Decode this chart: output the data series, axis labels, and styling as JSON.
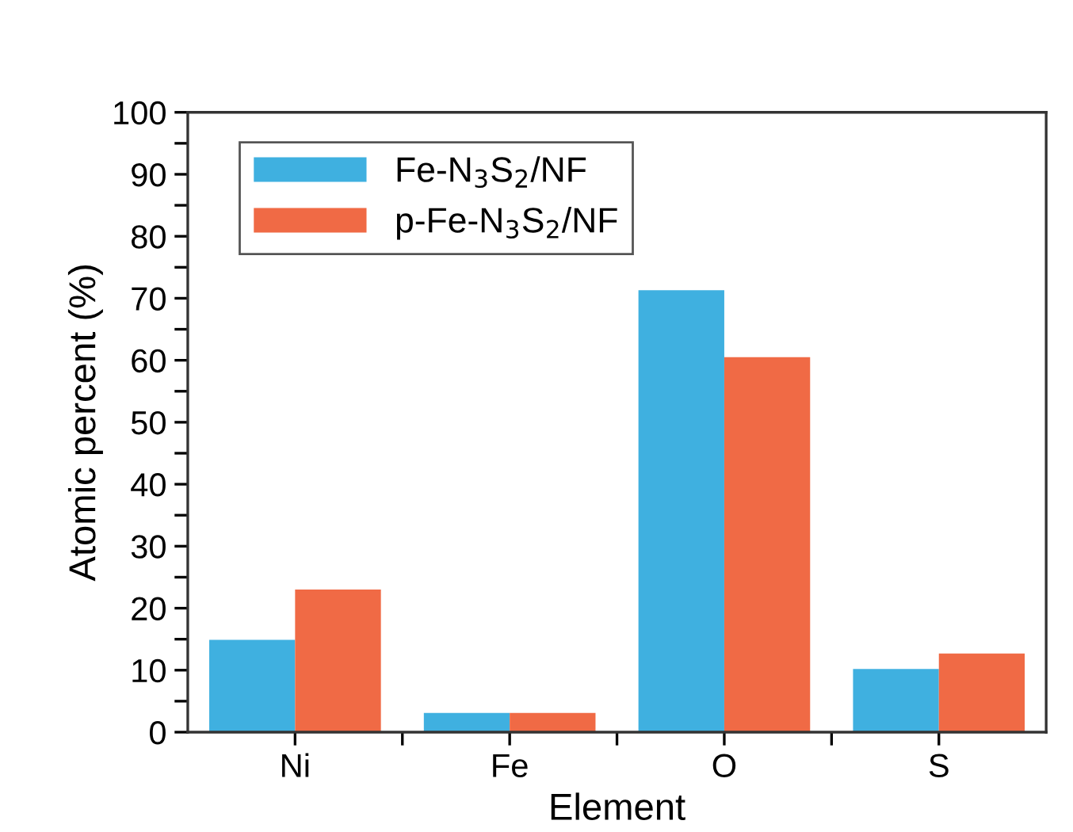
{
  "chart_data": {
    "type": "bar",
    "xlabel": "Element",
    "ylabel": "Atomic percent (%)",
    "categories": [
      "Ni",
      "Fe",
      "O",
      "S"
    ],
    "series": [
      {
        "name": "Fe-N$_{3}$S$_{2}$/NF",
        "color": "#3fb0e0",
        "values": [
          14.9,
          3.1,
          71.3,
          10.2
        ]
      },
      {
        "name": "p-Fe-N$_{3}$S$_{2}$/NF",
        "color": "#f06a45",
        "values": [
          23.0,
          3.1,
          60.5,
          12.7
        ]
      }
    ],
    "ylim": [
      0,
      100
    ],
    "yticks": [
      0,
      {
        "value": 5,
        "label": null
      },
      10,
      {
        "value": 15,
        "label": null
      },
      20,
      {
        "value": 25,
        "label": null
      },
      30,
      {
        "value": 35,
        "label": null
      },
      40,
      {
        "value": 45,
        "label": null
      },
      50,
      {
        "value": 55,
        "label": null
      },
      60,
      {
        "value": 65,
        "label": null
      },
      70,
      {
        "value": 75,
        "label": null
      },
      80,
      {
        "value": 85,
        "label": null
      },
      90,
      {
        "value": 95,
        "label": null
      },
      100
    ],
    "grid": false,
    "legend": "top left"
  }
}
